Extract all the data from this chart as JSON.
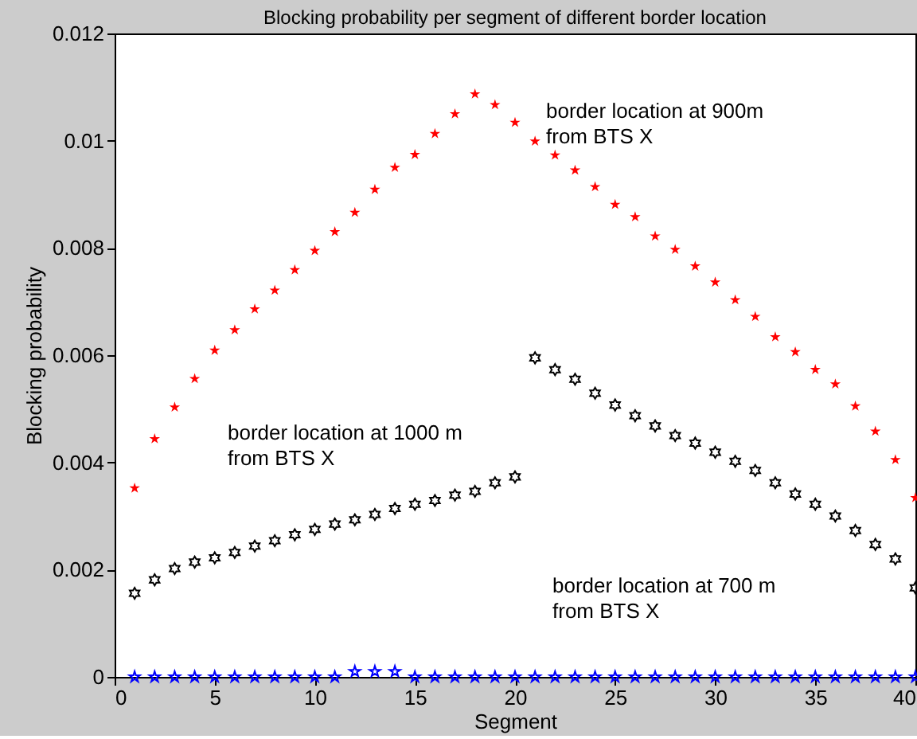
{
  "chart_data": {
    "type": "scatter",
    "title": "Blocking probability per segment of different border location",
    "xlabel": "Segment",
    "ylabel": "Blocking probability",
    "x": [
      1,
      2,
      3,
      4,
      5,
      6,
      7,
      8,
      9,
      10,
      11,
      12,
      13,
      14,
      15,
      16,
      17,
      18,
      19,
      20,
      21,
      22,
      23,
      24,
      25,
      26,
      27,
      28,
      29,
      30,
      31,
      32,
      33,
      34,
      35,
      36,
      37,
      38,
      39,
      40
    ],
    "series": [
      {
        "color": "#ff0000",
        "marker": "star",
        "values": [
          0.00352,
          0.00444,
          0.00503,
          0.00556,
          0.00609,
          0.00647,
          0.00686,
          0.00721,
          0.00759,
          0.00795,
          0.0083,
          0.00866,
          0.00909,
          0.0095,
          0.00974,
          0.01013,
          0.0105,
          0.01087,
          0.01067,
          0.01034,
          0.00999,
          0.00973,
          0.00945,
          0.00914,
          0.00881,
          0.00858,
          0.00822,
          0.00797,
          0.00766,
          0.00736,
          0.00703,
          0.00672,
          0.00634,
          0.00606,
          0.00573,
          0.00546,
          0.00505,
          0.00458,
          0.00405,
          0.00334
        ]
      },
      {
        "color": "#000000",
        "values": [
          0.00156,
          0.00181,
          0.00202,
          0.00214,
          0.00222,
          0.00232,
          0.00244,
          0.00254,
          0.00265,
          0.00275,
          0.00285,
          0.00293,
          0.00303,
          0.00314,
          0.00322,
          0.00329,
          0.00339,
          0.00346,
          0.00362,
          0.00373,
          0.00595,
          0.00573,
          0.00555,
          0.00529,
          0.00507,
          0.00487,
          0.00468,
          0.0045,
          0.00436,
          0.00419,
          0.00402,
          0.00385,
          0.00362,
          0.00341,
          0.00322,
          0.003,
          0.00273,
          0.00247,
          0.0022,
          0.00166
        ]
      },
      {
        "color": "#0000ff",
        "marker": "star",
        "values": [
          0,
          0,
          0,
          0,
          0,
          0,
          0,
          0,
          0,
          0,
          0,
          0.0001,
          0.0001,
          0.0001,
          0,
          0,
          0,
          0,
          0,
          0,
          0,
          0,
          0,
          0,
          0,
          0,
          0,
          0,
          0,
          0,
          0,
          0,
          0,
          0,
          0,
          0,
          0,
          0,
          0,
          0
        ]
      }
    ],
    "annotations": [
      "border location at 900m\nfrom BTS X",
      "border location at 1000 m\nfrom BTS X",
      "border location at 700 m\nfrom BTS X"
    ],
    "xlim": [
      0,
      40
    ],
    "xticks": [
      0,
      5,
      10,
      15,
      20,
      25,
      30,
      35,
      40
    ],
    "ylim": [
      0,
      0.012
    ],
    "yticks": [
      0,
      0.002,
      0.004,
      0.006,
      0.008,
      0.01,
      0.012
    ],
    "grid": false
  }
}
